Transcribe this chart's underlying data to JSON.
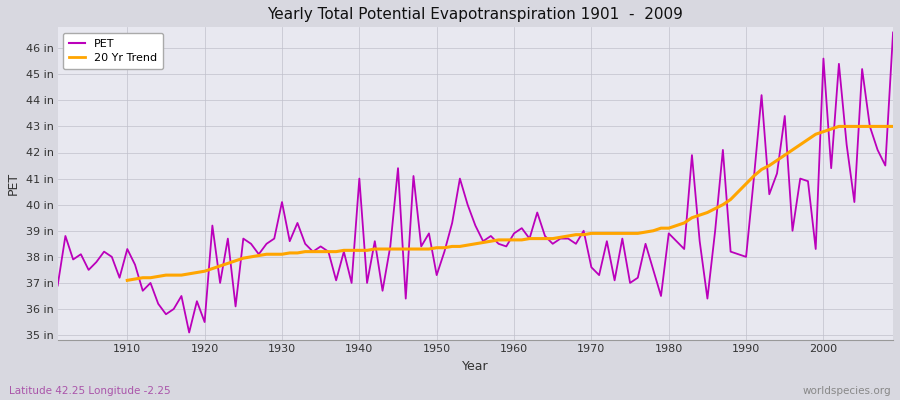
{
  "title": "Yearly Total Potential Evapotranspiration 1901  -  2009",
  "xlabel": "Year",
  "ylabel": "PET",
  "subtitle": "Latitude 42.25 Longitude -2.25",
  "watermark": "worldspecies.org",
  "pet_color": "#bb00bb",
  "trend_color": "#ffa500",
  "background_color": "#e0e0e8",
  "plot_bg_color": "#e8e8f0",
  "ylim": [
    34.8,
    46.8
  ],
  "yticks": [
    35,
    36,
    37,
    38,
    39,
    40,
    41,
    42,
    43,
    44,
    45,
    46
  ],
  "ytick_labels": [
    "35 in",
    "36 in",
    "37 in",
    "38 in",
    "39 in",
    "40 in",
    "41 in",
    "42 in",
    "43 in",
    "44 in",
    "45 in",
    "46 in"
  ],
  "xticks": [
    1910,
    1920,
    1930,
    1940,
    1950,
    1960,
    1970,
    1980,
    1990,
    2000
  ],
  "xlim": [
    1901,
    2009
  ],
  "years": [
    1901,
    1902,
    1903,
    1904,
    1905,
    1906,
    1907,
    1908,
    1909,
    1910,
    1911,
    1912,
    1913,
    1914,
    1915,
    1916,
    1917,
    1918,
    1919,
    1920,
    1921,
    1922,
    1923,
    1924,
    1925,
    1926,
    1927,
    1928,
    1929,
    1930,
    1931,
    1932,
    1933,
    1934,
    1935,
    1936,
    1937,
    1938,
    1939,
    1940,
    1941,
    1942,
    1943,
    1944,
    1945,
    1946,
    1947,
    1948,
    1949,
    1950,
    1951,
    1952,
    1953,
    1954,
    1955,
    1956,
    1957,
    1958,
    1959,
    1960,
    1961,
    1962,
    1963,
    1964,
    1965,
    1966,
    1967,
    1968,
    1969,
    1970,
    1971,
    1972,
    1973,
    1974,
    1975,
    1976,
    1977,
    1978,
    1979,
    1980,
    1981,
    1982,
    1983,
    1984,
    1985,
    1986,
    1987,
    1988,
    1989,
    1990,
    1991,
    1992,
    1993,
    1994,
    1995,
    1996,
    1997,
    1998,
    1999,
    2000,
    2001,
    2002,
    2003,
    2004,
    2005,
    2006,
    2007,
    2008,
    2009
  ],
  "pet_values": [
    36.9,
    38.8,
    37.9,
    38.1,
    37.5,
    37.8,
    38.2,
    38.0,
    37.2,
    38.3,
    37.7,
    36.7,
    37.0,
    36.2,
    35.8,
    36.0,
    36.5,
    35.1,
    36.3,
    35.5,
    39.2,
    37.0,
    38.7,
    36.1,
    38.7,
    38.5,
    38.1,
    38.5,
    38.7,
    40.1,
    38.6,
    39.3,
    38.5,
    38.2,
    38.4,
    38.2,
    37.1,
    38.2,
    37.0,
    41.0,
    37.0,
    38.6,
    36.7,
    38.4,
    41.4,
    36.4,
    41.1,
    38.4,
    38.9,
    37.3,
    38.2,
    39.3,
    41.0,
    40.0,
    39.2,
    38.6,
    38.8,
    38.5,
    38.4,
    38.9,
    39.1,
    38.7,
    39.7,
    38.8,
    38.5,
    38.7,
    38.7,
    38.5,
    39.0,
    37.6,
    37.3,
    38.6,
    37.1,
    38.7,
    37.0,
    37.2,
    38.5,
    37.5,
    36.5,
    38.9,
    38.6,
    38.3,
    41.9,
    38.6,
    36.4,
    39.0,
    42.1,
    38.2,
    38.1,
    38.0,
    41.0,
    44.2,
    40.4,
    41.2,
    43.4,
    39.0,
    41.0,
    40.9,
    38.3,
    45.6,
    41.4,
    45.4,
    42.3,
    40.1,
    45.2,
    43.0,
    42.1,
    41.5,
    46.6
  ],
  "trend_years": [
    1910,
    1911,
    1912,
    1913,
    1914,
    1915,
    1916,
    1917,
    1918,
    1919,
    1920,
    1921,
    1922,
    1923,
    1924,
    1925,
    1926,
    1927,
    1928,
    1929,
    1930,
    1931,
    1932,
    1933,
    1934,
    1935,
    1936,
    1937,
    1938,
    1939,
    1940,
    1941,
    1942,
    1943,
    1944,
    1945,
    1946,
    1947,
    1948,
    1949,
    1950,
    1951,
    1952,
    1953,
    1954,
    1955,
    1956,
    1957,
    1958,
    1959,
    1960,
    1961,
    1962,
    1963,
    1964,
    1965,
    1966,
    1967,
    1968,
    1969,
    1970,
    1971,
    1972,
    1973,
    1974,
    1975,
    1976,
    1977,
    1978,
    1979,
    1980,
    1981,
    1982,
    1983,
    1984,
    1985,
    1986,
    1987,
    1988,
    1989,
    1990,
    1991,
    1992,
    1993,
    1994,
    1995,
    1996,
    1997,
    1998,
    1999,
    2000,
    2001,
    2002,
    2003,
    2004,
    2005,
    2006,
    2007,
    2008,
    2009
  ],
  "trend_values": [
    37.1,
    37.15,
    37.2,
    37.2,
    37.25,
    37.3,
    37.3,
    37.3,
    37.35,
    37.4,
    37.45,
    37.55,
    37.65,
    37.75,
    37.85,
    37.95,
    38.0,
    38.05,
    38.1,
    38.1,
    38.1,
    38.15,
    38.15,
    38.2,
    38.2,
    38.2,
    38.2,
    38.2,
    38.25,
    38.25,
    38.25,
    38.25,
    38.3,
    38.3,
    38.3,
    38.3,
    38.3,
    38.3,
    38.3,
    38.3,
    38.35,
    38.35,
    38.4,
    38.4,
    38.45,
    38.5,
    38.55,
    38.6,
    38.65,
    38.65,
    38.65,
    38.65,
    38.7,
    38.7,
    38.7,
    38.7,
    38.75,
    38.8,
    38.85,
    38.85,
    38.9,
    38.9,
    38.9,
    38.9,
    38.9,
    38.9,
    38.9,
    38.95,
    39.0,
    39.1,
    39.1,
    39.2,
    39.3,
    39.5,
    39.6,
    39.7,
    39.85,
    40.0,
    40.2,
    40.5,
    40.8,
    41.1,
    41.35,
    41.5,
    41.7,
    41.9,
    42.1,
    42.3,
    42.5,
    42.7,
    42.8,
    42.9,
    43.0,
    43.0,
    43.0,
    43.0,
    43.0,
    43.0,
    43.0,
    43.0
  ]
}
